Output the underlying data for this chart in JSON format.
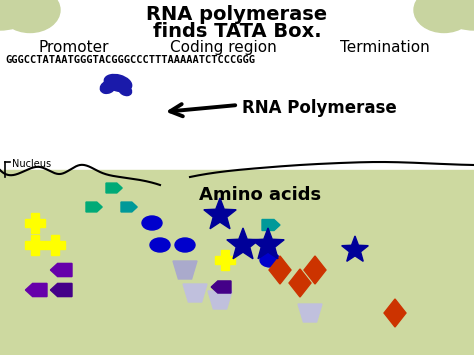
{
  "title_line1": "RNA polymerase",
  "title_line2": "finds TATA Box.",
  "label_promoter": "Promoter",
  "label_coding": "Coding region",
  "label_termination": "Termination",
  "dna_sequence": "GGGCCTATAATGGGTACGGGCCCTTTAAAAATCTCCCGGG",
  "label_nucleus": "Nucleus",
  "label_rna_pol": "RNA Polymerase",
  "label_amino": "Amino acids",
  "bg_top": "#ffffff",
  "bg_bottom": "#cdd9a0",
  "title_color": "#000000",
  "seq_color": "#000000",
  "green1": "#00aa77",
  "green2": "#009999",
  "yellow": "#ffff00",
  "blue": "#0000cc",
  "navy": "#000099",
  "purple": "#6600aa",
  "dark_purple": "#440088",
  "gray": "#aaaacc",
  "light_gray": "#c0c0dd",
  "orange_red": "#cc3300",
  "blob_color": "#1a1aaa"
}
